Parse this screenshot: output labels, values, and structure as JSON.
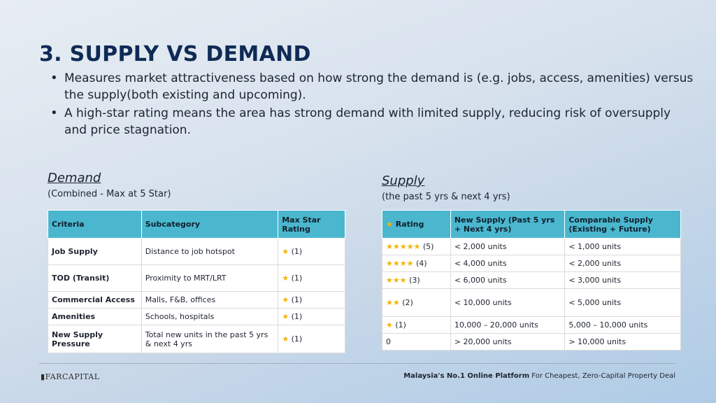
{
  "title": "3. SUPPLY VS DEMAND",
  "bullets": [
    "Measures market attractiveness based on how strong the demand is (e.g. jobs, access, amenities) versus the supply(both existing and upcoming).",
    "A high-star rating means the area has strong demand with limited supply, reducing risk of oversupply and price stagnation."
  ],
  "demand": {
    "title": "Demand",
    "subtitle": "(Combined - Max at 5 Star)",
    "headers": [
      "Criteria",
      "Subcategory",
      "Max Star Rating"
    ],
    "rows": [
      {
        "criteria": "Job Supply",
        "sub": "Distance to job hotspot",
        "rating": "(1)"
      },
      {
        "criteria": "TOD (Transit)",
        "sub": "Proximity to MRT/LRT",
        "rating": "(1)"
      },
      {
        "criteria": "Commercial Access",
        "sub": "Malls, F&B, offices",
        "rating": "(1)"
      },
      {
        "criteria": "Amenities",
        "sub": "Schools, hospitals",
        "rating": "(1)"
      },
      {
        "criteria": "New Supply Pressure",
        "sub": "Total new units in the past 5 yrs & next 4 yrs",
        "rating": "(1)"
      }
    ]
  },
  "supply": {
    "title": "Supply",
    "subtitle": "(the past 5 yrs & next 4 yrs)",
    "headers": [
      "Rating",
      "New Supply (Past 5 yrs + Next 4 yrs)",
      "Comparable Supply (Existing + Future)"
    ],
    "rows": [
      {
        "stars": "★★★★★",
        "label": "(5)",
        "new": "< 2,000 units",
        "comp": "< 1,000 units"
      },
      {
        "stars": "★★★★",
        "label": "(4)",
        "new": "< 4,000 units",
        "comp": "< 2,000 units"
      },
      {
        "stars": "★★★",
        "label": "(3)",
        "new": "< 6,000 units",
        "comp": "< 3,000 units"
      },
      {
        "stars": "★★",
        "label": "(2)",
        "new": "< 10,000 units",
        "comp": "< 5,000 units"
      },
      {
        "stars": "★",
        "label": "(1)",
        "new": "10,000 – 20,000 units",
        "comp": "5,000 – 10,000 units"
      },
      {
        "stars": "",
        "label": "0",
        "new": "> 20,000 units",
        "comp": "> 10,000 units"
      }
    ]
  },
  "footer": {
    "logo": "FARCAPITAL",
    "tagline_bold": "Malaysia's No.1 Online Platform",
    "tagline_rest": " For Cheapest, Zero-Capital Property Deal"
  }
}
